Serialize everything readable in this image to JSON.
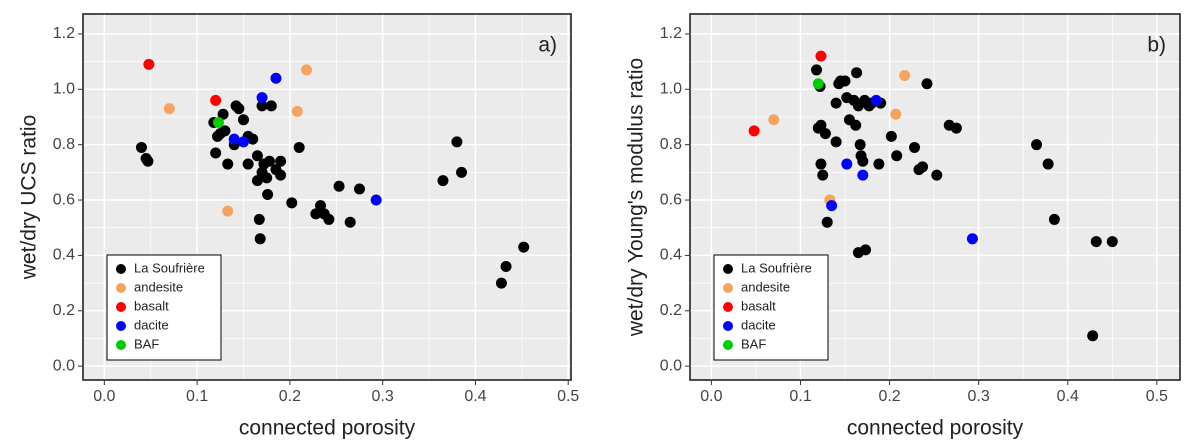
{
  "chart_data": [
    {
      "type": "scatter",
      "annotation": "a)",
      "xlabel": "connected porosity",
      "ylabel": "wet/dry UCS ratio",
      "xlim": [
        -0.023,
        0.503
      ],
      "ylim": [
        -0.05,
        1.272
      ],
      "xticks": [
        {
          "value": 0,
          "label": "0.0"
        },
        0.1,
        0.2,
        0.3,
        0.4,
        0.5
      ],
      "yticks": [
        {
          "value": 0,
          "label": "0.0"
        },
        0.2,
        0.4,
        0.6,
        0.8,
        {
          "value": 1,
          "label": "1.0"
        },
        1.2
      ],
      "grid": true,
      "legend": "lower left",
      "series": [
        {
          "name": "La Soufrière",
          "color": "#000000",
          "x": [
            0.04,
            0.045,
            0.047,
            0.118,
            0.12,
            0.122,
            0.125,
            0.128,
            0.13,
            0.133,
            0.14,
            0.142,
            0.145,
            0.15,
            0.155,
            0.155,
            0.16,
            0.165,
            0.165,
            0.167,
            0.168,
            0.17,
            0.17,
            0.172,
            0.175,
            0.176,
            0.178,
            0.18,
            0.185,
            0.19,
            0.19,
            0.202,
            0.21,
            0.228,
            0.233,
            0.237,
            0.242,
            0.253,
            0.265,
            0.275,
            0.365,
            0.38,
            0.385,
            0.428,
            0.433,
            0.452
          ],
          "values": [
            0.79,
            0.75,
            0.74,
            0.88,
            0.77,
            0.83,
            0.84,
            0.91,
            0.85,
            0.73,
            0.8,
            0.94,
            0.93,
            0.89,
            0.83,
            0.73,
            0.82,
            0.76,
            0.67,
            0.53,
            0.46,
            0.94,
            0.7,
            0.73,
            0.68,
            0.62,
            0.74,
            0.94,
            0.71,
            0.74,
            0.69,
            0.59,
            0.79,
            0.55,
            0.58,
            0.55,
            0.53,
            0.65,
            0.52,
            0.64,
            0.67,
            0.81,
            0.7,
            0.3,
            0.36,
            0.43
          ]
        },
        {
          "name": "andesite",
          "color": "#f4a460",
          "x": [
            0.07,
            0.133,
            0.208,
            0.218
          ],
          "values": [
            0.93,
            0.56,
            0.92,
            1.07
          ]
        },
        {
          "name": "basalt",
          "color": "#ff0000",
          "x": [
            0.048,
            0.12
          ],
          "values": [
            1.09,
            0.96
          ]
        },
        {
          "name": "dacite",
          "color": "#0000ff",
          "x": [
            0.14,
            0.15,
            0.17,
            0.185,
            0.293
          ],
          "values": [
            0.82,
            0.81,
            0.97,
            1.04,
            0.6
          ]
        },
        {
          "name": "BAF",
          "color": "#00cc00",
          "x": [
            0.123
          ],
          "values": [
            0.88
          ]
        }
      ]
    },
    {
      "type": "scatter",
      "annotation": "b)",
      "xlabel": "connected porosity",
      "ylabel": "wet/dry Young's modulus ratio",
      "xlim": [
        -0.024,
        0.526
      ],
      "ylim": [
        -0.05,
        1.272
      ],
      "xticks": [
        {
          "value": 0,
          "label": "0.0"
        },
        0.1,
        0.2,
        0.3,
        0.4,
        0.5
      ],
      "yticks": [
        {
          "value": 0,
          "label": "0.0"
        },
        0.2,
        0.4,
        0.6,
        0.8,
        {
          "value": 1,
          "label": "1.0"
        },
        1.2
      ],
      "grid": true,
      "legend": "lower left",
      "series": [
        {
          "name": "La Soufrière",
          "color": "#000000",
          "x": [
            0.118,
            0.12,
            0.122,
            0.123,
            0.123,
            0.125,
            0.128,
            0.13,
            0.14,
            0.14,
            0.143,
            0.145,
            0.15,
            0.152,
            0.155,
            0.16,
            0.162,
            0.163,
            0.165,
            0.165,
            0.167,
            0.168,
            0.17,
            0.172,
            0.173,
            0.177,
            0.18,
            0.188,
            0.19,
            0.202,
            0.208,
            0.228,
            0.233,
            0.237,
            0.242,
            0.253,
            0.267,
            0.275,
            0.365,
            0.378,
            0.385,
            0.432,
            0.45,
            0.428
          ],
          "values": [
            1.07,
            0.86,
            1.01,
            0.87,
            0.73,
            0.69,
            0.84,
            0.52,
            0.81,
            0.95,
            1.02,
            1.03,
            1.03,
            0.97,
            0.89,
            0.96,
            0.87,
            1.06,
            0.94,
            0.41,
            0.8,
            0.76,
            0.74,
            0.96,
            0.42,
            0.94,
            0.95,
            0.73,
            0.95,
            0.83,
            0.76,
            0.79,
            0.71,
            0.72,
            1.02,
            0.69,
            0.87,
            0.86,
            0.8,
            0.73,
            0.53,
            0.45,
            0.45,
            0.11
          ]
        },
        {
          "name": "andesite",
          "color": "#f4a460",
          "x": [
            0.07,
            0.133,
            0.207,
            0.217
          ],
          "values": [
            0.89,
            0.6,
            0.91,
            1.05
          ]
        },
        {
          "name": "basalt",
          "color": "#ff0000",
          "x": [
            0.048,
            0.123
          ],
          "values": [
            0.85,
            1.12
          ]
        },
        {
          "name": "dacite",
          "color": "#0000ff",
          "x": [
            0.135,
            0.152,
            0.17,
            0.185,
            0.293
          ],
          "values": [
            0.58,
            0.73,
            0.69,
            0.96,
            0.46
          ]
        },
        {
          "name": "BAF",
          "color": "#00cc00",
          "x": [
            0.12
          ],
          "values": [
            1.02
          ]
        }
      ]
    }
  ]
}
